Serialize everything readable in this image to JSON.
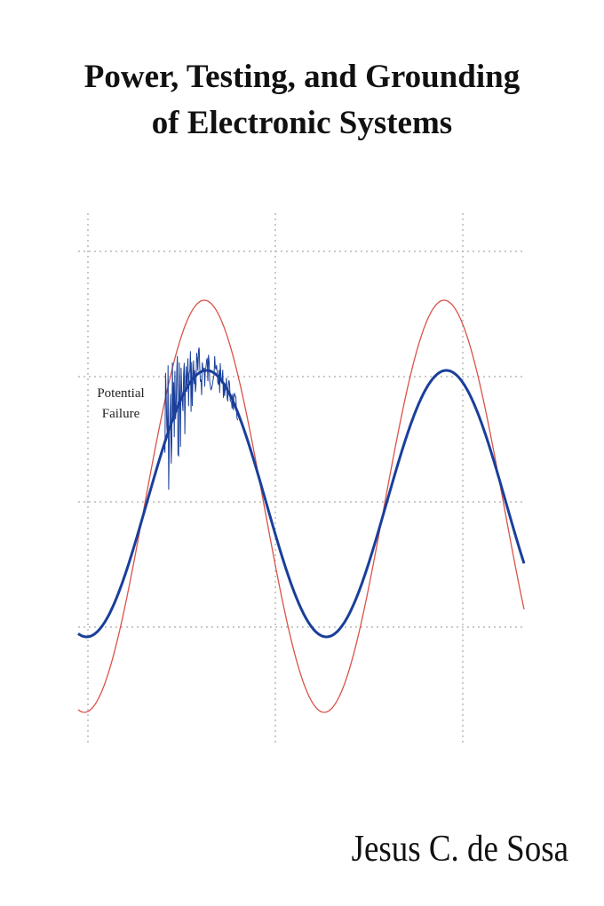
{
  "cover": {
    "title": [
      "Power, Testing, and Grounding",
      "of Electronic Systems"
    ],
    "illustration_label": [
      "Potential",
      "Failure"
    ],
    "author": "Jesus C. de Sosa"
  }
}
